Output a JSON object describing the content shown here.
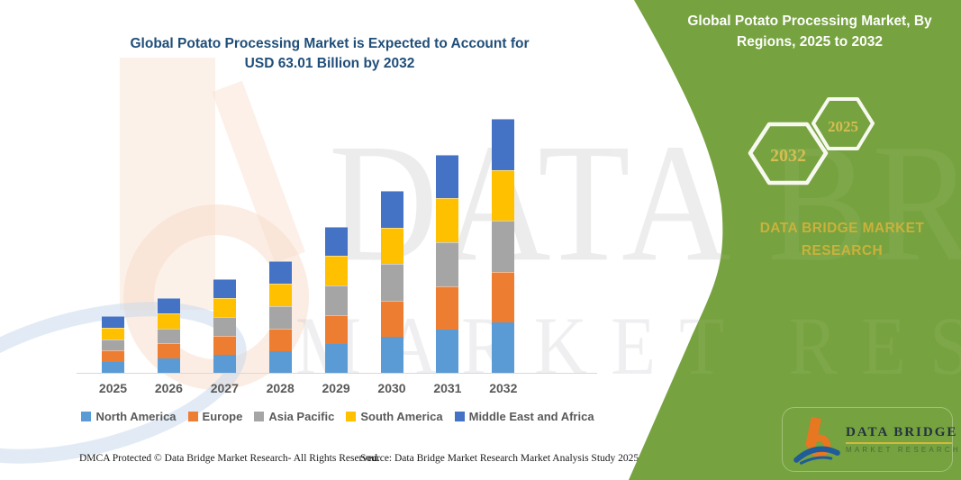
{
  "header": {
    "chart_title_line1": "Global Potato Processing Market is Expected to Account for",
    "chart_title_line2": "USD 63.01 Billion by 2032"
  },
  "side_panel": {
    "title_line1": "Global Potato Processing Market, By",
    "title_line2": "Regions, 2025 to 2032",
    "hexagon_back_label": "2032",
    "hexagon_front_label": "2025",
    "brand_line1": "DATA BRIDGE MARKET",
    "brand_line2": "RESEARCH",
    "panel_color": "#76A23F",
    "accent_gold": "#C9B23C",
    "hex_year_color": "#D4BE52"
  },
  "chart_data": {
    "type": "bar",
    "stacked": true,
    "title": "Global Potato Processing Market is Expected to Account for USD 63.01 Billion by 2032",
    "unit": "USD Billion",
    "categories": [
      "2025",
      "2026",
      "2027",
      "2028",
      "2029",
      "2030",
      "2031",
      "2032"
    ],
    "series": [
      {
        "name": "North America",
        "color": "#5B9BD5",
        "values": [
          2.68,
          3.58,
          4.54,
          5.44,
          7.18,
          8.98,
          10.8,
          12.6
        ]
      },
      {
        "name": "Europe",
        "color": "#ED7D31",
        "values": [
          2.68,
          3.58,
          4.54,
          5.44,
          7.18,
          8.98,
          10.8,
          12.6
        ]
      },
      {
        "name": "Asia Pacific",
        "color": "#A5A5A5",
        "values": [
          2.68,
          3.58,
          4.54,
          5.44,
          7.18,
          8.98,
          10.8,
          12.6
        ]
      },
      {
        "name": "South America",
        "color": "#FFC000",
        "values": [
          2.68,
          3.58,
          4.54,
          5.44,
          7.18,
          8.98,
          10.8,
          12.6
        ]
      },
      {
        "name": "Middle East and Africa",
        "color": "#4472C4",
        "values": [
          2.68,
          3.58,
          4.54,
          5.44,
          7.18,
          8.98,
          10.8,
          12.6
        ]
      }
    ],
    "totals": [
      13.4,
      17.9,
      22.7,
      27.2,
      35.9,
      44.9,
      54.0,
      63.01
    ],
    "legend_position": "bottom",
    "grid": false,
    "y_axis_shown": false,
    "ylim": [
      0,
      63.01
    ],
    "axis_label_color": "#595959"
  },
  "footer": {
    "left": "DMCA Protected © Data Bridge Market Research-  All Rights Reserved.",
    "right": "Source: Data Bridge Market Research  Market Analysis Study 2025"
  },
  "logo": {
    "name": "DATA BRIDGE",
    "subtitle": "MARKET RESEARCH"
  },
  "watermark": {
    "line1": "DATA BRIDGE",
    "line2": "MARKET RESEARCH"
  }
}
